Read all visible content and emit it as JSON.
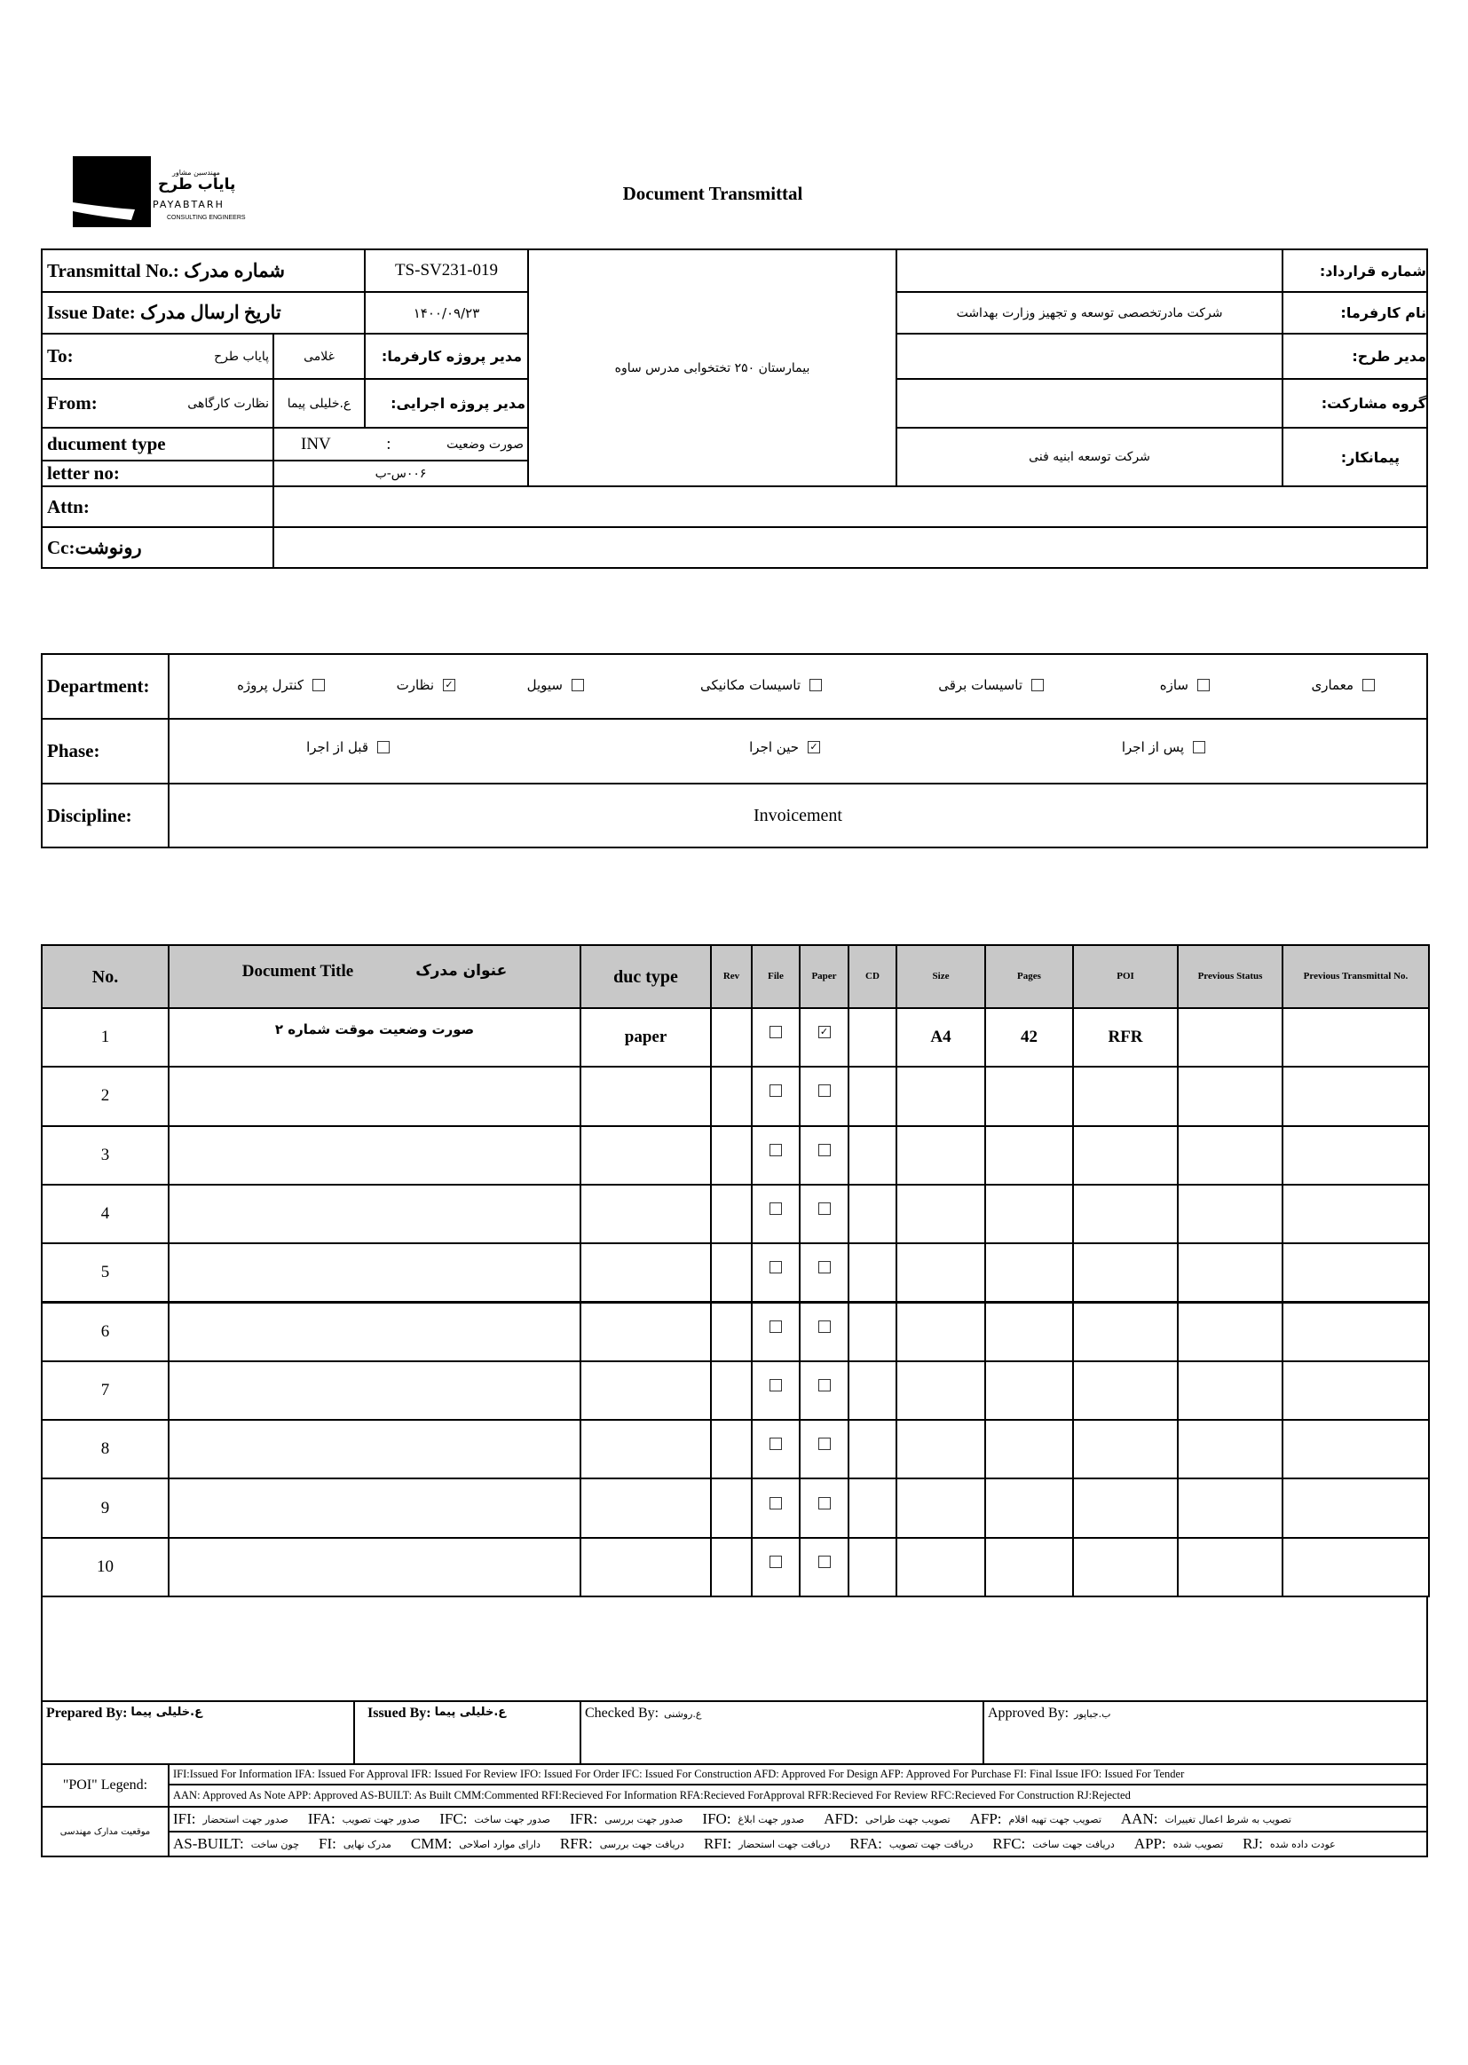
{
  "logo": {
    "text_fa_small": "مهندسین مشاور",
    "text_fa": "پایاب طرح",
    "text_en": "PAYABTARH",
    "subtitle": "CONSULTING ENGINEERS"
  },
  "title": "Document Transmittal",
  "header": {
    "transmittal_label": "Transmittal No.: شماره مدرک",
    "transmittal_no": "TS-SV231-019",
    "issue_label": "Issue Date: تاریخ ارسال مدرک",
    "issue_date": "۱۴۰۰/۰۹/۲۳",
    "to_label": "To:",
    "to_value": "پایاب طرح",
    "to_person": "غلامی",
    "client_pm_label": "مدیر پروژه کارفرما:",
    "from_label": "From:",
    "from_value": "نظارت کارگاهی",
    "from_person": "ع.خلیلی پیما",
    "exec_pm_label": "مدیر پروژه اجرایی:",
    "doctype_label": "ducument type",
    "doctype_code": "INV",
    "doctype_sep": ":",
    "doctype_value": "صورت وضعیت",
    "letter_label": "letter no:",
    "letter_value": "۰۰۶س-ب",
    "project": "بیمارستان ۲۵۰ تختخوابی مدرس ساوه",
    "attn_label": "Attn:",
    "cc_label": "Cc:رونوشت",
    "right": [
      {
        "label": "شماره قرارداد:",
        "value": ""
      },
      {
        "label": "نام کارفرما:",
        "value": "شرکت مادرتخصصی توسعه و تجهیز وزارت بهداشت"
      },
      {
        "label": "مدیر طرح:",
        "value": ""
      },
      {
        "label": "گروه مشارکت:",
        "value": ""
      },
      {
        "label": "پیمانکار:",
        "value": "شرکت توسعه ابنیه فنی"
      }
    ]
  },
  "department": {
    "label": "Department:",
    "options": [
      {
        "label": "معماری",
        "checked": false
      },
      {
        "label": "سازه",
        "checked": false
      },
      {
        "label": "تاسیسات برقی",
        "checked": false
      },
      {
        "label": "تاسیسات مکانیکی",
        "checked": false
      },
      {
        "label": "سیویل",
        "checked": false
      },
      {
        "label": "نظارت",
        "checked": true
      },
      {
        "label": "کنترل پروژه",
        "checked": false
      }
    ]
  },
  "phase": {
    "label": "Phase:",
    "options": [
      {
        "label": "پس از اجرا",
        "checked": false
      },
      {
        "label": "حین اجرا",
        "checked": true
      },
      {
        "label": "قبل از اجرا",
        "checked": false
      }
    ]
  },
  "discipline": {
    "label": "Discipline:",
    "value": "Invoicement"
  },
  "table": {
    "headers": {
      "no": "No.",
      "title_en": "Document Title",
      "title_fa": "عنوان مدرک",
      "type": "duc type",
      "rev": "Rev",
      "file": "File",
      "paper": "Paper",
      "cd": "CD",
      "size": "Size",
      "pages": "Pages",
      "poi": "POI",
      "prev_status": "Previous Status",
      "prev_no": "Previous Transmittal No."
    },
    "rows": [
      {
        "no": "1",
        "title": "صورت وضعیت موقت شماره ۲",
        "type": "paper",
        "file": false,
        "paper": true,
        "size": "A4",
        "pages": "42",
        "poi": "RFR"
      },
      {
        "no": "2",
        "file": false,
        "paper": false
      },
      {
        "no": "3",
        "file": false,
        "paper": false
      },
      {
        "no": "4",
        "file": false,
        "paper": false
      },
      {
        "no": "5",
        "file": false,
        "paper": false
      },
      {
        "no": "6",
        "file": false,
        "paper": false
      },
      {
        "no": "7",
        "file": false,
        "paper": false
      },
      {
        "no": "8",
        "file": false,
        "paper": false
      },
      {
        "no": "9",
        "file": false,
        "paper": false
      },
      {
        "no": "10",
        "file": false,
        "paper": false
      }
    ]
  },
  "signatures": {
    "prepared_label": "Prepared By:",
    "prepared": "ع.خلیلی پیما",
    "issued_label": "Issued By:",
    "issued": "ع.خلیلی پیما",
    "checked_label": "Checked By:",
    "checked": "ع.روشنی",
    "approved_label": "Approved By:",
    "approved": "ب.جباپور"
  },
  "legend": {
    "label": "\"POI\" Legend:",
    "line1": "IFI:Issued For Information  IFA: Issued For Approval  IFR: Issued For Review   IFO: Issued For Order  IFC: Issued For Construction AFD: Approved For Design AFP: Approved For Purchase  FI: Final Issue  IFO: Issued For Tender",
    "line2": "AAN: Approved As Note  APP: Approved  AS-BUILT: As Built CMM:Commented  RFI:Recieved For Information   RFA:Recieved ForApproval   RFR:Recieved For Review  RFC:Recieved For Construction  RJ:Rejected",
    "fa_label": "موقعیت مدارک مهندسی",
    "fa_line1": [
      {
        "code": "IFI:",
        "desc": "صدور جهت استحضار"
      },
      {
        "code": "IFA:",
        "desc": "صدور جهت تصویب"
      },
      {
        "code": "IFC:",
        "desc": "صدور جهت ساخت"
      },
      {
        "code": "IFR:",
        "desc": "صدور جهت بررسی"
      },
      {
        "code": "IFO:",
        "desc": "صدور جهت ابلاغ"
      },
      {
        "code": "AFD:",
        "desc": "تصویب جهت طراحی"
      },
      {
        "code": "AFP:",
        "desc": "تصویب جهت تهیه اقلام"
      },
      {
        "code": "AAN:",
        "desc": "تصویب به شرط اعمال تغییرات"
      }
    ],
    "fa_line2": [
      {
        "code": "AS-BUILT:",
        "desc": "چون ساخت"
      },
      {
        "code": "FI:",
        "desc": "مدرک نهایی"
      },
      {
        "code": "CMM:",
        "desc": "دارای موارد اصلاحی"
      },
      {
        "code": "RFR:",
        "desc": "دریافت جهت بررسی"
      },
      {
        "code": "RFI:",
        "desc": "دریافت جهت استحضار"
      },
      {
        "code": "RFA:",
        "desc": "دریافت جهت تصویب"
      },
      {
        "code": "RFC:",
        "desc": "دریافت جهت ساخت"
      },
      {
        "code": "APP:",
        "desc": "تصویب شده"
      },
      {
        "code": "RJ:",
        "desc": "عودت داده شده"
      }
    ]
  }
}
